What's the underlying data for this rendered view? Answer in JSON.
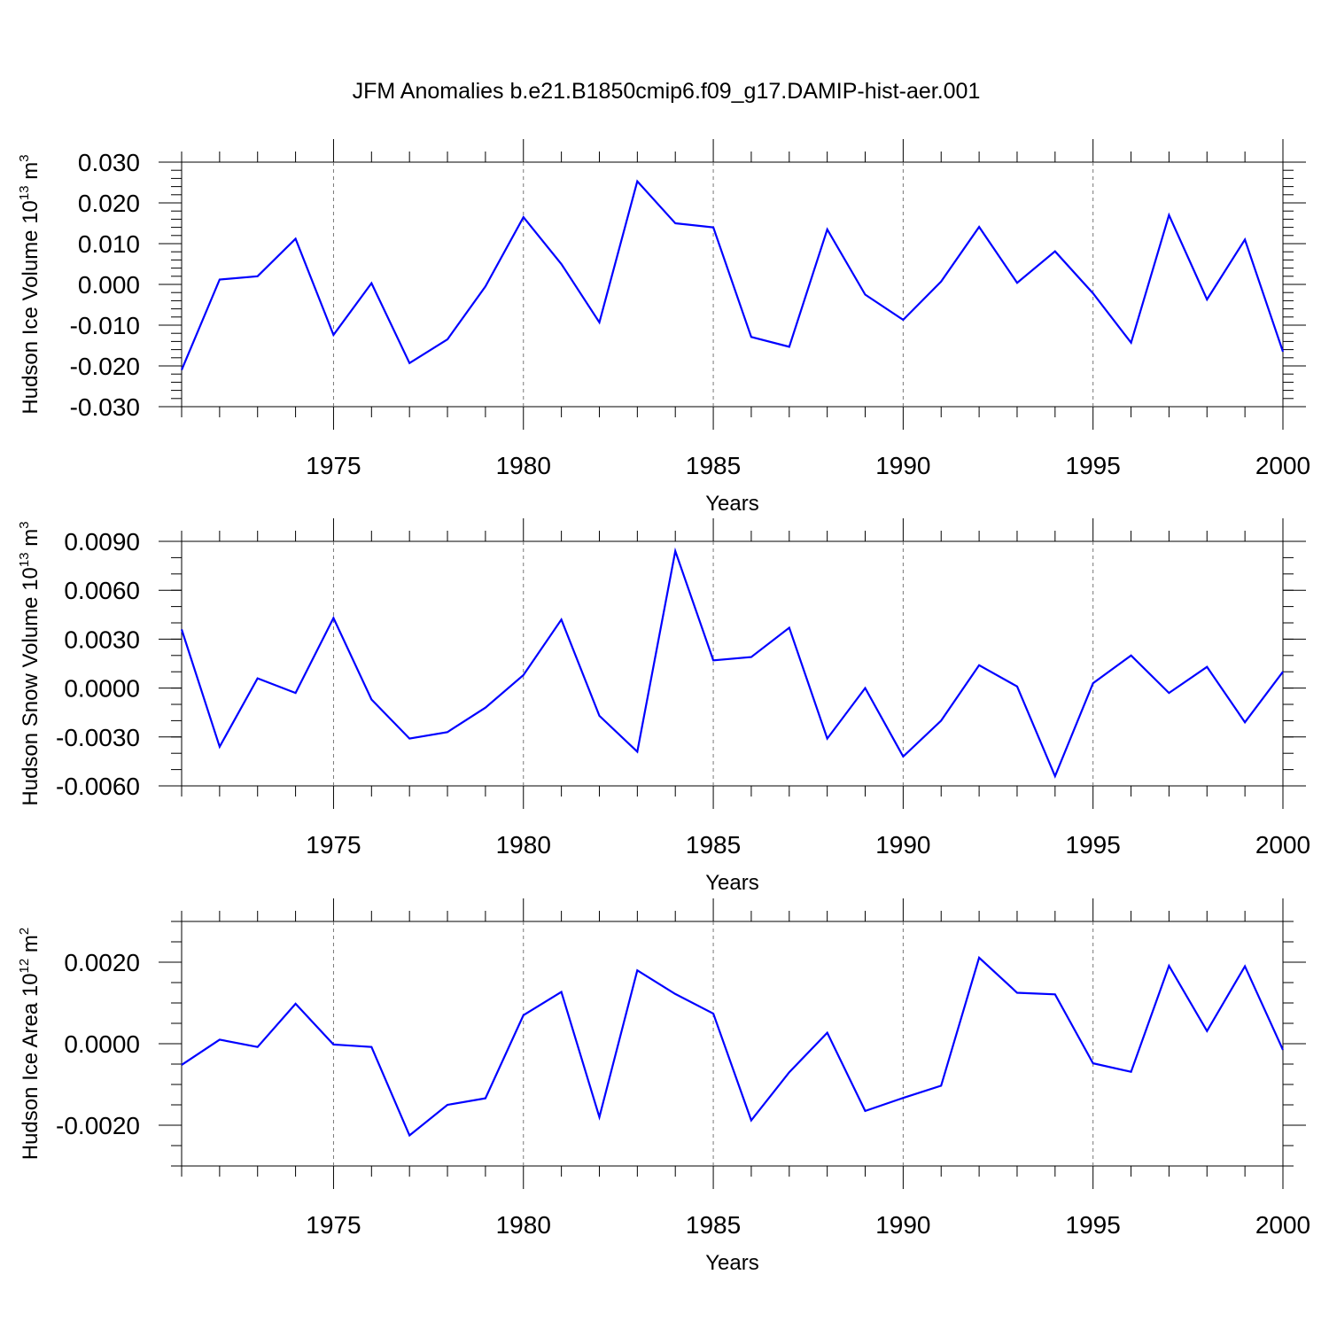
{
  "title": "JFM Anomalies b.e21.B1850cmip6.f09_g17.DAMIP-hist-aer.001",
  "series_color": "#0000ff",
  "chart_data": [
    {
      "type": "line",
      "id": "ice-volume",
      "ylabel": "Hudson Ice Volume 10",
      "ylabel_exp": "13",
      "ylabel_unit": " m",
      "ylabel_unit_exp": "3",
      "xlabel": "Years",
      "xlim": [
        1971,
        2000
      ],
      "ylim": [
        -0.03,
        0.03
      ],
      "x_ticks": [
        1975,
        1980,
        1985,
        1990,
        1995,
        2000
      ],
      "x_tick_labels": [
        "1975",
        "1980",
        "1985",
        "1990",
        "1995",
        "2000"
      ],
      "y_ticks": [
        -0.03,
        -0.02,
        -0.01,
        0.0,
        0.01,
        0.02,
        0.03
      ],
      "y_tick_labels": [
        "-0.030",
        "-0.020",
        "-0.010",
        "0.000",
        "0.010",
        "0.020",
        "0.030"
      ],
      "y_minor_step": 0.002,
      "grid_x": true,
      "x": [
        1971,
        1972,
        1973,
        1974,
        1975,
        1976,
        1977,
        1978,
        1979,
        1980,
        1981,
        1982,
        1983,
        1984,
        1985,
        1986,
        1987,
        1988,
        1989,
        1990,
        1991,
        1992,
        1993,
        1994,
        1995,
        1996,
        1997,
        1998,
        1999,
        2000
      ],
      "values": [
        -0.021,
        0.0012,
        0.002,
        0.0112,
        -0.0124,
        0.0003,
        -0.0193,
        -0.0135,
        -0.0005,
        0.0165,
        0.005,
        -0.0093,
        0.0253,
        0.015,
        0.014,
        -0.0129,
        -0.0153,
        0.0135,
        -0.0025,
        -0.0087,
        0.0007,
        0.0141,
        0.0004,
        0.0081,
        -0.0022,
        -0.0143,
        0.017,
        -0.0037,
        0.011,
        -0.0165
      ]
    },
    {
      "type": "line",
      "id": "snow-volume",
      "ylabel": "Hudson Snow Volume 10",
      "ylabel_exp": "13",
      "ylabel_unit": " m",
      "ylabel_unit_exp": "3",
      "xlabel": "Years",
      "xlim": [
        1971,
        2000
      ],
      "ylim": [
        -0.006,
        0.009
      ],
      "x_ticks": [
        1975,
        1980,
        1985,
        1990,
        1995,
        2000
      ],
      "x_tick_labels": [
        "1975",
        "1980",
        "1985",
        "1990",
        "1995",
        "2000"
      ],
      "y_ticks": [
        -0.006,
        -0.003,
        0.0,
        0.003,
        0.006,
        0.009
      ],
      "y_tick_labels": [
        "-0.0060",
        "-0.0030",
        "0.0000",
        "0.0030",
        "0.0060",
        "0.0090"
      ],
      "y_minor_step": 0.001,
      "grid_x": true,
      "x": [
        1971,
        1972,
        1973,
        1974,
        1975,
        1976,
        1977,
        1978,
        1979,
        1980,
        1981,
        1982,
        1983,
        1984,
        1985,
        1986,
        1987,
        1988,
        1989,
        1990,
        1991,
        1992,
        1993,
        1994,
        1995,
        1996,
        1997,
        1998,
        1999,
        2000
      ],
      "values": [
        0.0036,
        -0.0036,
        0.0006,
        -0.0003,
        0.0043,
        -0.0007,
        -0.0031,
        -0.0027,
        -0.0012,
        0.0008,
        0.0042,
        -0.0017,
        -0.0039,
        0.0084,
        0.0017,
        0.0019,
        0.0037,
        -0.0031,
        0.0,
        -0.0042,
        -0.002,
        0.0014,
        0.0001,
        -0.0054,
        0.0003,
        0.002,
        -0.0003,
        0.0013,
        -0.0021,
        0.001
      ]
    },
    {
      "type": "line",
      "id": "ice-area",
      "ylabel": "Hudson Ice Area 10",
      "ylabel_exp": "12",
      "ylabel_unit": " m",
      "ylabel_unit_exp": "2",
      "xlabel": "Years",
      "xlim": [
        1971,
        2000
      ],
      "ylim": [
        -0.003,
        0.003
      ],
      "x_ticks": [
        1975,
        1980,
        1985,
        1990,
        1995,
        2000
      ],
      "x_tick_labels": [
        "1975",
        "1980",
        "1985",
        "1990",
        "1995",
        "2000"
      ],
      "y_ticks": [
        -0.002,
        0.0,
        0.002
      ],
      "y_tick_labels": [
        "-0.0020",
        "0.0000",
        "0.0020"
      ],
      "y_minor_step": 0.0005,
      "grid_x": true,
      "x": [
        1971,
        1972,
        1973,
        1974,
        1975,
        1976,
        1977,
        1978,
        1979,
        1980,
        1981,
        1982,
        1983,
        1984,
        1985,
        1986,
        1987,
        1988,
        1989,
        1990,
        1991,
        1992,
        1993,
        1994,
        1995,
        1996,
        1997,
        1998,
        1999,
        2000
      ],
      "values": [
        -0.00052,
        0.0001,
        -8e-05,
        0.00098,
        -2e-05,
        -8e-05,
        -0.00225,
        -0.0015,
        -0.00134,
        0.0007,
        0.00127,
        -0.0018,
        0.0018,
        0.00122,
        0.00074,
        -0.00188,
        -0.0007,
        0.00027,
        -0.00165,
        -0.00133,
        -0.00103,
        0.00211,
        0.00125,
        0.00121,
        -0.00048,
        -0.00069,
        0.00191,
        0.00031,
        0.0019,
        -0.00015
      ]
    }
  ]
}
